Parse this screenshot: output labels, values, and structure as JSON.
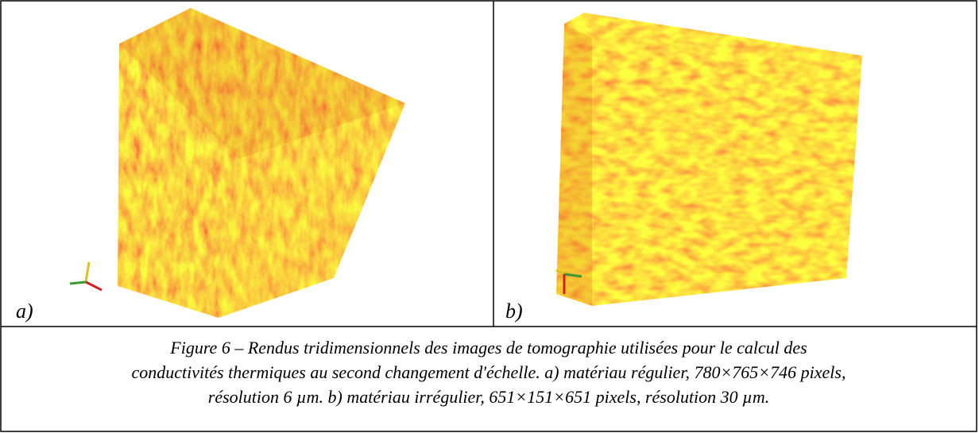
{
  "panels": [
    {
      "label": "a)"
    },
    {
      "label": "b)"
    }
  ],
  "caption": {
    "lines": [
      "Figure 6 – Rendus tridimensionnels des images de tomographie utilisées pour le calcul des",
      "conductivités thermiques au second changement d'échelle. a) matériau régulier, 780×765×746 pixels,",
      "résolution 6 µm. b) matériau irrégulier, 651×151×651 pixels, résolution 30 µm."
    ]
  }
}
